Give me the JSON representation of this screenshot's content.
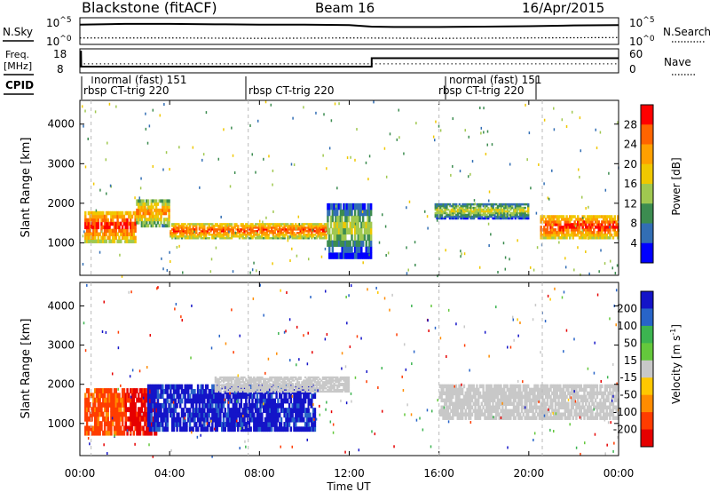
{
  "header": {
    "station": "Blackstone (fitACF)",
    "beam": "Beam 16",
    "date": "16/Apr/2015"
  },
  "noise_panel": {
    "left_label": "N.Sky",
    "right_label": "N.Search",
    "left_ticks": [
      "10^5",
      "10^0"
    ],
    "right_ticks": [
      "10^5",
      "10^0"
    ]
  },
  "freq_panel": {
    "left_label_1": "Freq.",
    "left_label_2": "[MHz]",
    "right_label": "Nave",
    "left_ticks": [
      "18",
      "8"
    ],
    "right_ticks": [
      "60",
      "0"
    ]
  },
  "cpid": {
    "label": "CPID",
    "segments": [
      {
        "text": "normal (fast) 151",
        "row": 1
      },
      {
        "text": "rbsp CT-trig 220",
        "row": 2
      },
      {
        "text": "rbsp CT-trig 220",
        "row": 2
      },
      {
        "text": "rbsp CT-trig 220",
        "row": 2
      },
      {
        "text": "normal (fast) 151",
        "row": 1
      }
    ]
  },
  "power_colorbar": {
    "label": "Power [dB]",
    "ticks": [
      "28",
      "24",
      "20",
      "16",
      "12",
      "8",
      "4"
    ],
    "colors": [
      "#ff0000",
      "#ff6400",
      "#ffa000",
      "#f0c800",
      "#a0c850",
      "#3c8c50",
      "#326eb4",
      "#0000ff"
    ]
  },
  "velocity_colorbar": {
    "label": "Velocity [m s^-1]",
    "ticks": [
      "200",
      "100",
      "50",
      "15",
      "-15",
      "-50",
      "-100",
      "-200"
    ],
    "colors": [
      "#1414c8",
      "#2864c8",
      "#3cb450",
      "#64c83c",
      "#c8c8c8",
      "#ffc800",
      "#ff8c00",
      "#ff3c00",
      "#e60000"
    ]
  },
  "axes": {
    "ylabel": "Slant Range [km]",
    "xlabel": "Time UT",
    "y_ticks": [
      "1000",
      "2000",
      "3000",
      "4000"
    ],
    "x_ticks": [
      "00:00",
      "04:00",
      "08:00",
      "12:00",
      "16:00",
      "20:00",
      "00:00"
    ]
  },
  "chart_data": {
    "type": "heatmap",
    "x_range": [
      "00:00",
      "24:00"
    ],
    "y_range_km": [
      180,
      4600
    ],
    "noise_sky": {
      "x_hours": [
        0,
        2,
        4,
        6,
        8,
        10,
        12,
        13,
        14,
        16,
        18,
        20,
        22,
        24
      ],
      "log10": [
        4.6,
        4.8,
        4.8,
        4.7,
        4.6,
        4.6,
        4.5,
        4.1,
        4.0,
        4.0,
        4.1,
        4.2,
        4.4,
        4.5
      ]
    },
    "noise_search": {
      "x_hours": [
        0,
        4,
        8,
        12,
        16,
        20,
        24
      ],
      "log10": [
        1.2,
        1.2,
        1.1,
        1.2,
        1.1,
        1.2,
        1.3
      ]
    },
    "frequency": {
      "x_hours": [
        0,
        0.05,
        0.06,
        13.0,
        13.0,
        24
      ],
      "mhz": [
        18,
        18,
        10.3,
        10.3,
        14.6,
        14.6
      ]
    },
    "nave": {
      "x_hours": [
        0,
        24
      ],
      "value": [
        22,
        22
      ]
    },
    "power_bands": [
      {
        "t0": 0.2,
        "t1": 2.5,
        "r0": 1000,
        "r1": 1800,
        "power_db": 22
      },
      {
        "t0": 2.5,
        "t1": 4.0,
        "r0": 1400,
        "r1": 2100,
        "power_db": 16
      },
      {
        "t0": 4.0,
        "t1": 11.0,
        "r0": 1100,
        "r1": 1500,
        "power_db": 20
      },
      {
        "t0": 11.0,
        "t1": 13.0,
        "r0": 600,
        "r1": 2000,
        "power_db": 8
      },
      {
        "t0": 15.8,
        "t1": 20.0,
        "r0": 1600,
        "r1": 2000,
        "power_db": 10
      },
      {
        "t0": 20.5,
        "t1": 24.0,
        "r0": 1100,
        "r1": 1700,
        "power_db": 22
      }
    ],
    "velocity_bands": [
      {
        "t0": 0.2,
        "t1": 2.0,
        "r0": 700,
        "r1": 1900,
        "velocity": -100
      },
      {
        "t0": 2.0,
        "t1": 3.5,
        "r0": 700,
        "r1": 1900,
        "velocity": -200
      },
      {
        "t0": 3.0,
        "t1": 10.5,
        "r0": 800,
        "r1": 2000,
        "velocity": 200
      },
      {
        "t0": 6.0,
        "t1": 12.0,
        "r0": 1800,
        "r1": 2200,
        "velocity": 0
      },
      {
        "t0": 16.0,
        "t1": 24.0,
        "r0": 1100,
        "r1": 2000,
        "velocity": 0
      }
    ]
  }
}
